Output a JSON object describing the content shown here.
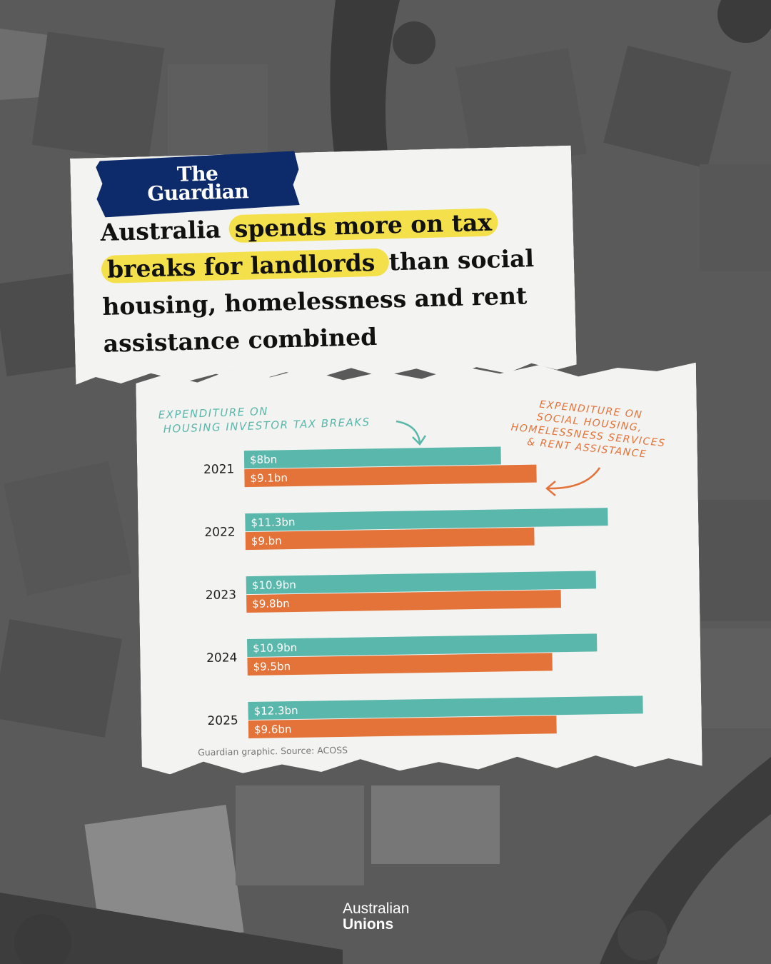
{
  "brand": {
    "publisher_line1": "The",
    "publisher_line2": "Guardian",
    "footer_logo_line1": "Australian",
    "footer_logo_line2": "Unions"
  },
  "headline": {
    "part1": "Australia ",
    "highlight1": "spends more on tax",
    "highlight2": "breaks for landlords ",
    "part2": "than social housing, homelessness and rent assistance combined"
  },
  "annotations": {
    "tax_line1": "EXPENDITURE ON",
    "tax_line2": "HOUSING INVESTOR TAX BREAKS",
    "social_line1": "EXPENDITURE ON",
    "social_line2": "SOCIAL HOUSING,",
    "social_line3": "HOMELESSNESS SERVICES",
    "social_line4": "& RENT ASSISTANCE"
  },
  "source": "Guardian graphic. Source: ACOSS",
  "colors": {
    "tax_breaks": "#5ab7ab",
    "social": "#e4733a",
    "highlight": "#f4e04a",
    "guardian_blue": "#0d2a6b"
  },
  "chart_data": {
    "type": "bar",
    "orientation": "horizontal",
    "categories": [
      "2021",
      "2022",
      "2023",
      "2024",
      "2025"
    ],
    "series": [
      {
        "name": "EXPENDITURE ON HOUSING INVESTOR TAX BREAKS",
        "values": [
          8,
          11.3,
          10.9,
          10.9,
          12.3
        ],
        "labels": [
          "$8bn",
          "$11.3bn",
          "$10.9bn",
          "$10.9bn",
          "$12.3bn"
        ]
      },
      {
        "name": "EXPENDITURE ON SOCIAL HOUSING, HOMELESSNESS SERVICES & RENT ASSISTANCE",
        "values": [
          9.1,
          9.0,
          9.8,
          9.5,
          9.6
        ],
        "labels": [
          "$9.1bn",
          "$9.bn",
          "$9.8bn",
          "$9.5bn",
          "$9.6bn"
        ]
      }
    ],
    "xlim": [
      0,
      12.3
    ],
    "grid": false
  }
}
